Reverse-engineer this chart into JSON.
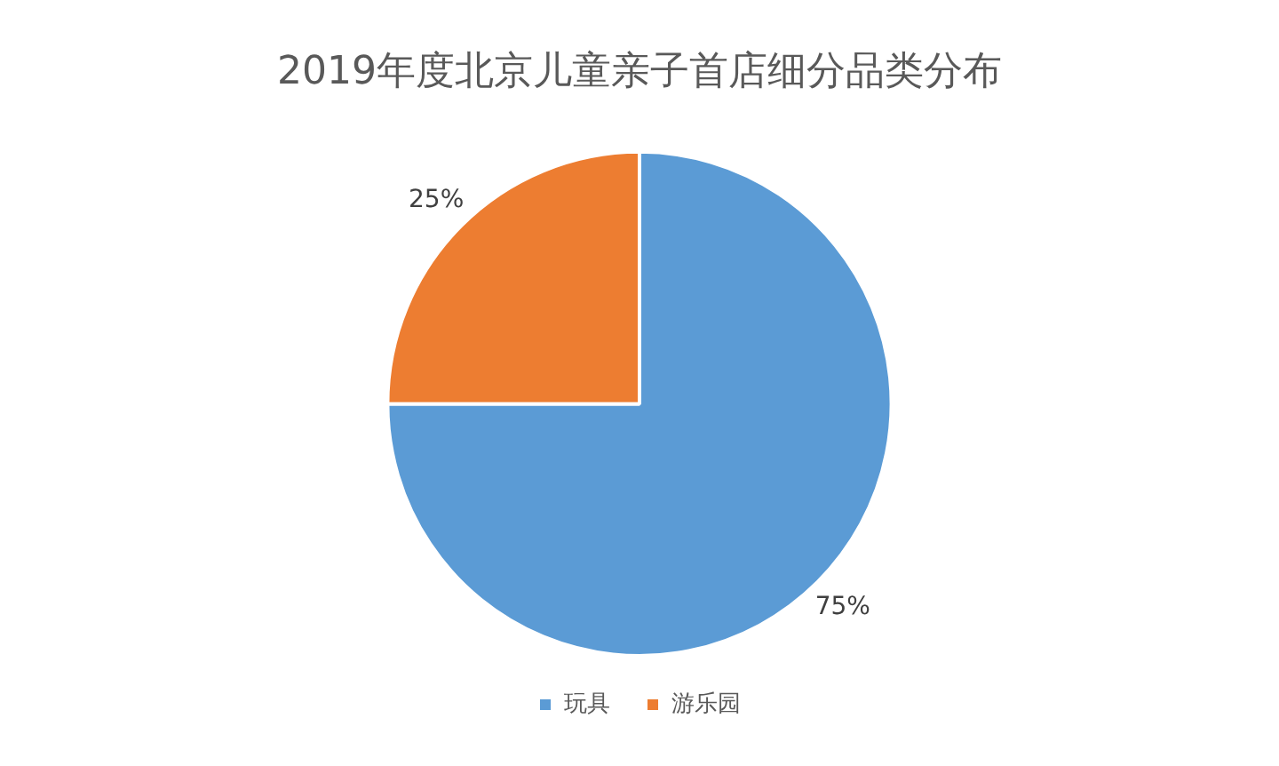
{
  "chart_data": {
    "type": "pie",
    "title": "2019年度北京儿童亲子首店细分品类分布",
    "categories": [
      "玩具",
      "游乐园"
    ],
    "values": [
      75,
      25
    ],
    "colors": [
      "#5b9bd5",
      "#ed7d31"
    ],
    "value_labels": [
      "75%",
      "25%"
    ],
    "legend": "bottom"
  }
}
